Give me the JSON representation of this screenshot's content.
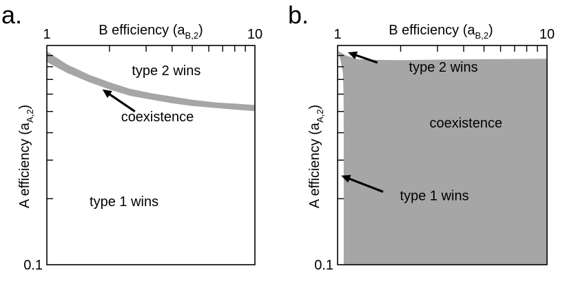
{
  "chart_data": [
    {
      "type": "area",
      "panel_label": "a.",
      "xlabel": "B efficiency (a",
      "xlabel_sub": "B,2",
      "xlabel_close": ")",
      "ylabel": "A efficiency (a",
      "ylabel_sub": "A,2",
      "ylabel_close": ")",
      "x_scale": "log",
      "y_scale": "log",
      "xlim": [
        1,
        10
      ],
      "ylim": [
        0.1,
        1
      ],
      "x_tick_labels": [
        {
          "value": 1,
          "label": "1"
        },
        {
          "value": 10,
          "label": "10"
        }
      ],
      "y_tick_labels": [
        {
          "value": 0.1,
          "label": "0.1"
        }
      ],
      "grid": false,
      "colors": {
        "region": "#a6a6a6",
        "axes": "#000000"
      },
      "coexistence_band": {
        "x": [
          1.0,
          1.25,
          1.6,
          2.0,
          2.5,
          3.2,
          4.0,
          5.0,
          6.5,
          8.0,
          10.0
        ],
        "y_lower": [
          0.84,
          0.75,
          0.68,
          0.63,
          0.59,
          0.565,
          0.545,
          0.53,
          0.518,
          0.51,
          0.502
        ],
        "y_upper": [
          0.94,
          0.82,
          0.735,
          0.68,
          0.635,
          0.605,
          0.585,
          0.565,
          0.55,
          0.543,
          0.535
        ]
      },
      "annotations": [
        {
          "text": "type 2 wins",
          "x": 3.75,
          "y": 0.77,
          "arrow": false
        },
        {
          "text": "coexistence",
          "x": 3.4,
          "y": 0.475,
          "arrow": true,
          "arrow_from": [
            2.65,
            0.5
          ],
          "arrow_to": [
            1.85,
            0.63
          ]
        },
        {
          "text": "type 1 wins",
          "x": 2.35,
          "y": 0.195,
          "arrow": false
        }
      ]
    },
    {
      "type": "area",
      "panel_label": "b.",
      "xlabel": "B efficiency (a",
      "xlabel_sub": "B,2",
      "xlabel_close": ")",
      "ylabel": "A efficiency (a",
      "ylabel_sub": "A,2",
      "ylabel_close": ")",
      "x_scale": "log",
      "y_scale": "log",
      "xlim": [
        1,
        10
      ],
      "ylim": [
        0.1,
        1
      ],
      "x_tick_labels": [
        {
          "value": 1,
          "label": "1"
        },
        {
          "value": 10,
          "label": "10"
        }
      ],
      "y_tick_labels": [
        {
          "value": 0.1,
          "label": "0.1"
        }
      ],
      "grid": false,
      "colors": {
        "region": "#a6a6a6",
        "axes": "#000000"
      },
      "coexistence_region": {
        "top_boundary": {
          "x": [
            1.0,
            1.1,
            1.25,
            1.5,
            2.0,
            3.0,
            5.0,
            7.0,
            10.0
          ],
          "y": [
            0.945,
            0.9,
            0.865,
            0.86,
            0.858,
            0.862,
            0.866,
            0.868,
            0.87
          ]
        },
        "left_boundary": {
          "y": [
            0.1,
            0.2,
            0.4,
            0.6,
            0.75,
            0.85,
            0.945
          ],
          "x": [
            1.07,
            1.07,
            1.07,
            1.068,
            1.06,
            1.035,
            1.0
          ]
        }
      },
      "annotations": [
        {
          "text": "type 2 wins",
          "x": 3.2,
          "y": 0.8,
          "arrow": true,
          "arrow_from": [
            1.55,
            0.835
          ],
          "arrow_to": [
            1.12,
            0.93
          ]
        },
        {
          "text": "coexistence",
          "x": 4.1,
          "y": 0.445,
          "arrow": false
        },
        {
          "text": "type 1 wins",
          "x": 2.9,
          "y": 0.207,
          "arrow": true,
          "arrow_from": [
            1.65,
            0.215
          ],
          "arrow_to": [
            1.04,
            0.255
          ]
        }
      ]
    }
  ]
}
